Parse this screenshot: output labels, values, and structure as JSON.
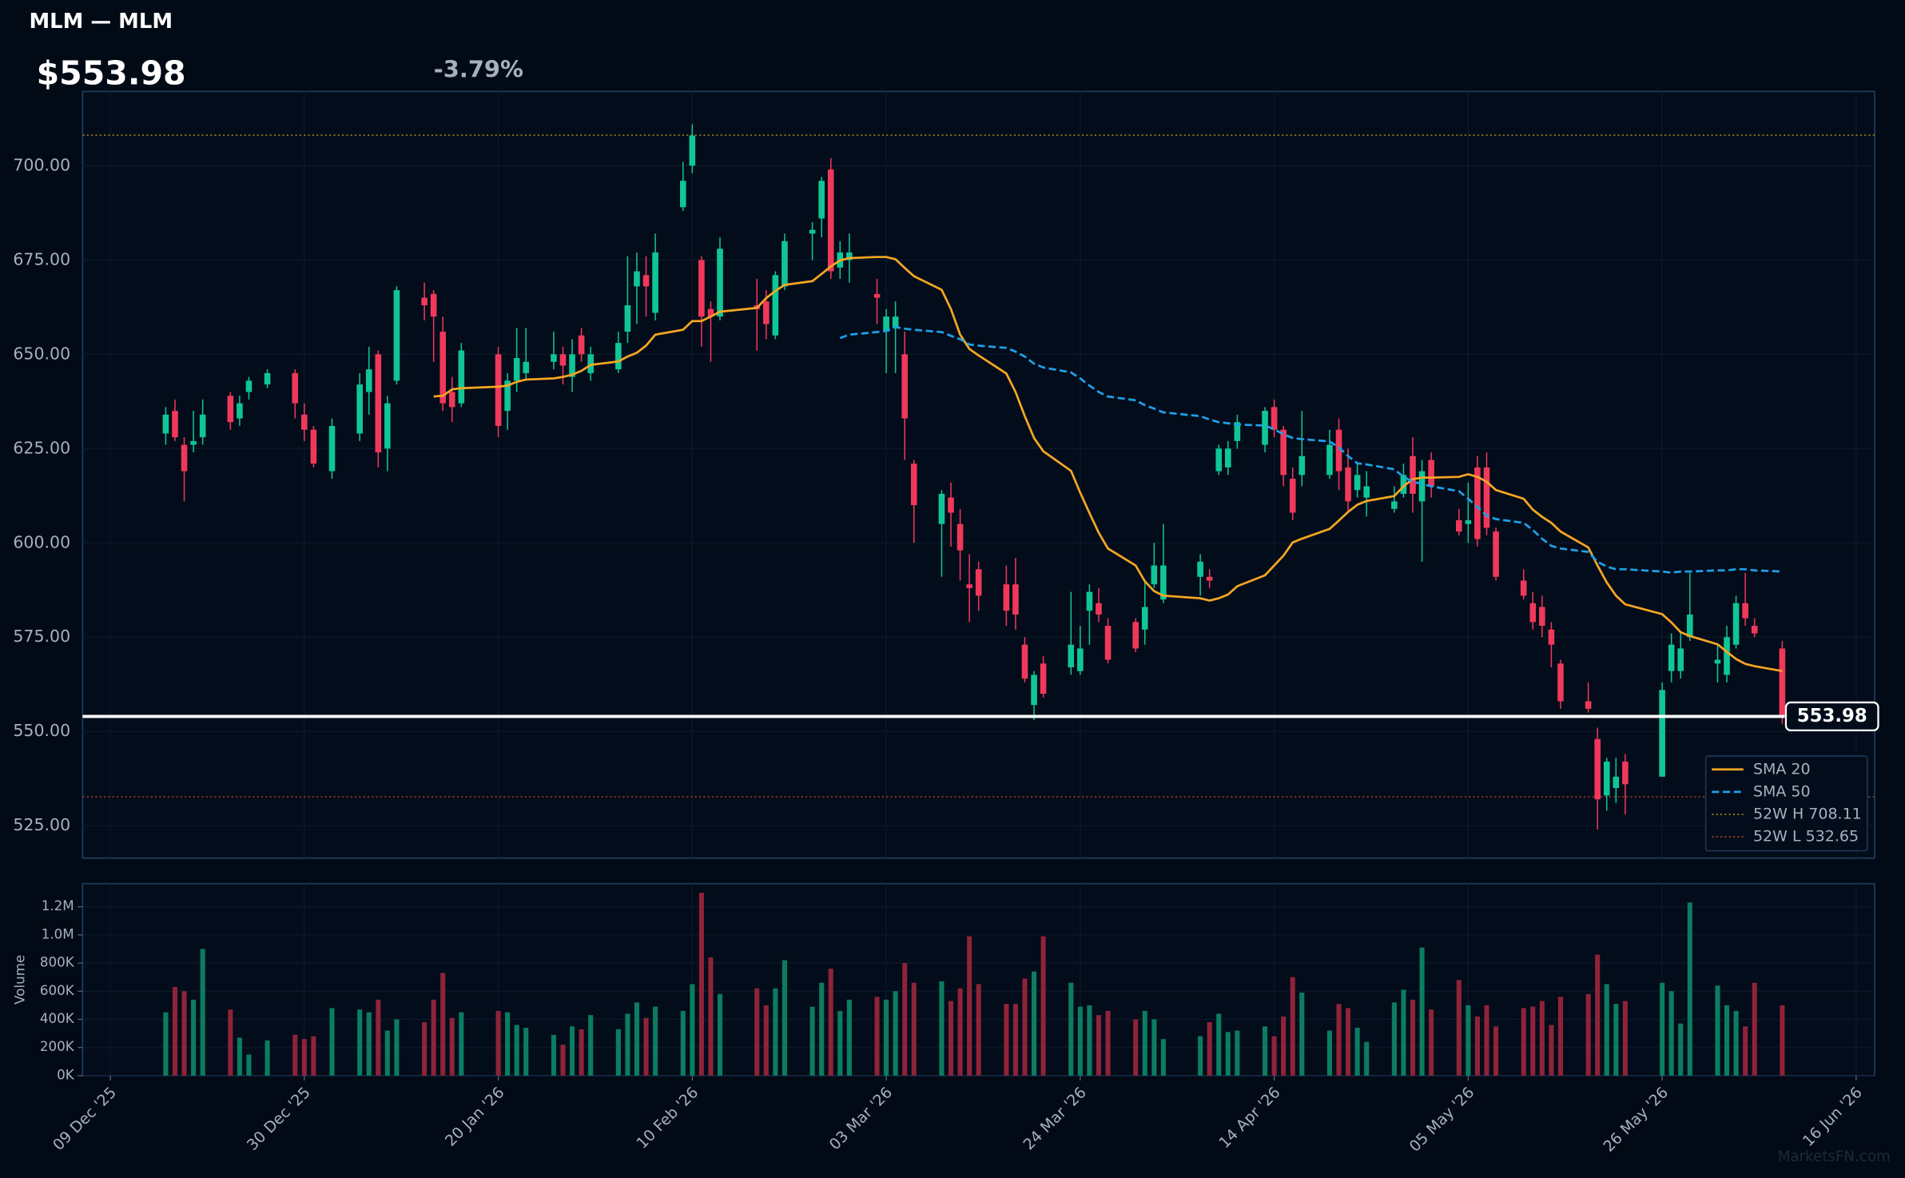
{
  "chart_data": {
    "type": "candlestick",
    "title": "MLM — MLM",
    "price": "$553.98",
    "change": "-3.79%",
    "change_color": "#f0385a",
    "up_color": "#10c596",
    "down_color": "#f0385a",
    "x": [
      "2025-12-15",
      "2025-12-16",
      "2025-12-17",
      "2025-12-18",
      "2025-12-19",
      "2025-12-22",
      "2025-12-23",
      "2025-12-24",
      "2025-12-26",
      "2025-12-29",
      "2025-12-30",
      "2025-12-31",
      "2026-01-02",
      "2026-01-05",
      "2026-01-06",
      "2026-01-07",
      "2026-01-08",
      "2026-01-09",
      "2026-01-12",
      "2026-01-13",
      "2026-01-14",
      "2026-01-15",
      "2026-01-16",
      "2026-01-20",
      "2026-01-21",
      "2026-01-22",
      "2026-01-23",
      "2026-01-26",
      "2026-01-27",
      "2026-01-28",
      "2026-01-29",
      "2026-01-30",
      "2026-02-02",
      "2026-02-03",
      "2026-02-04",
      "2026-02-05",
      "2026-02-06",
      "2026-02-09",
      "2026-02-10",
      "2026-02-11",
      "2026-02-12",
      "2026-02-13",
      "2026-02-17",
      "2026-02-18",
      "2026-02-19",
      "2026-02-20",
      "2026-02-23",
      "2026-02-24",
      "2026-02-25",
      "2026-02-26",
      "2026-02-27",
      "2026-03-02",
      "2026-03-03",
      "2026-03-04",
      "2026-03-05",
      "2026-03-06",
      "2026-03-09",
      "2026-03-10",
      "2026-03-11",
      "2026-03-12",
      "2026-03-13",
      "2026-03-16",
      "2026-03-17",
      "2026-03-18",
      "2026-03-19",
      "2026-03-20",
      "2026-03-23",
      "2026-03-24",
      "2026-03-25",
      "2026-03-26",
      "2026-03-27",
      "2026-03-30",
      "2026-03-31",
      "2026-04-01",
      "2026-04-02",
      "2026-04-06",
      "2026-04-07",
      "2026-04-08",
      "2026-04-09",
      "2026-04-10",
      "2026-04-13",
      "2026-04-14",
      "2026-04-15",
      "2026-04-16",
      "2026-04-17",
      "2026-04-20",
      "2026-04-21",
      "2026-04-22",
      "2026-04-23",
      "2026-04-24",
      "2026-04-27",
      "2026-04-28",
      "2026-04-29",
      "2026-04-30",
      "2026-05-01",
      "2026-05-04",
      "2026-05-05",
      "2026-05-06",
      "2026-05-07",
      "2026-05-08",
      "2026-05-11",
      "2026-05-12",
      "2026-05-13",
      "2026-05-14",
      "2026-05-15",
      "2026-05-18",
      "2026-05-19",
      "2026-05-20",
      "2026-05-21",
      "2026-05-22",
      "2026-05-26",
      "2026-05-27",
      "2026-05-28",
      "2026-05-29",
      "2026-06-01",
      "2026-06-02",
      "2026-06-03",
      "2026-06-04",
      "2026-06-05",
      "2026-06-08"
    ],
    "open": [
      629,
      635,
      626,
      626,
      628,
      639,
      633,
      640,
      642,
      645,
      634,
      630,
      619,
      629,
      640,
      650,
      625,
      643,
      665,
      666,
      656,
      640,
      637,
      650,
      635,
      643,
      645,
      648,
      650,
      644,
      655,
      645,
      646,
      656,
      668,
      671,
      661,
      689,
      700,
      675,
      662,
      660,
      663,
      664,
      655,
      668,
      682,
      686,
      699,
      673,
      675,
      666,
      656,
      657,
      650,
      621,
      605,
      612,
      605,
      589,
      593,
      589,
      589,
      573,
      557,
      568,
      567,
      566,
      582,
      584,
      578,
      579,
      577,
      589,
      585,
      591,
      591,
      619,
      620,
      627,
      626,
      636,
      630,
      617,
      618,
      618,
      630,
      620,
      614,
      612,
      609,
      613,
      623,
      611,
      622,
      606,
      605,
      620,
      620,
      603,
      590,
      584,
      583,
      577,
      568,
      558,
      548,
      533,
      535,
      542,
      538,
      566,
      566,
      575,
      568,
      565,
      573,
      584,
      578,
      572
    ],
    "high": [
      636,
      638,
      628,
      635,
      638,
      640,
      639,
      644,
      646,
      646,
      637,
      631,
      633,
      645,
      652,
      651,
      639,
      668,
      669,
      667,
      660,
      644,
      653,
      652,
      645,
      657,
      657,
      656,
      652,
      654,
      657,
      652,
      656,
      676,
      677,
      676,
      682,
      701,
      711,
      676,
      664,
      681,
      670,
      667,
      672,
      682,
      685,
      697,
      702,
      680,
      682,
      670,
      662,
      664,
      656,
      622,
      614,
      616,
      609,
      597,
      595,
      594,
      596,
      575,
      566,
      570,
      587,
      578,
      589,
      588,
      580,
      580,
      590,
      600,
      605,
      597,
      593,
      626,
      627,
      634,
      636,
      638,
      631,
      620,
      635,
      630,
      633,
      625,
      621,
      619,
      615,
      621,
      628,
      622,
      624,
      609,
      616,
      623,
      624,
      604,
      593,
      587,
      586,
      579,
      569,
      563,
      551,
      543,
      543,
      544,
      563,
      576,
      576,
      592,
      573,
      578,
      586,
      592,
      580,
      574
    ],
    "low": [
      626,
      627,
      611,
      624,
      626,
      630,
      631,
      638,
      641,
      633,
      627,
      620,
      617,
      627,
      634,
      620,
      619,
      642,
      659,
      648,
      635,
      632,
      636,
      628,
      630,
      640,
      643,
      646,
      642,
      640,
      648,
      643,
      645,
      653,
      658,
      660,
      659,
      688,
      698,
      652,
      648,
      659,
      651,
      654,
      654,
      667,
      675,
      681,
      670,
      670,
      669,
      658,
      645,
      645,
      622,
      600,
      591,
      599,
      590,
      579,
      582,
      578,
      577,
      563,
      553,
      559,
      565,
      565,
      573,
      579,
      568,
      571,
      573,
      588,
      584,
      586,
      588,
      618,
      618,
      625,
      624,
      628,
      615,
      606,
      615,
      617,
      614,
      608,
      612,
      607,
      608,
      612,
      608,
      595,
      612,
      602,
      600,
      599,
      602,
      590,
      585,
      577,
      575,
      567,
      556,
      555,
      524,
      529,
      531,
      528,
      538,
      563,
      564,
      574,
      563,
      563,
      572,
      578,
      575,
      552
    ],
    "close": [
      634,
      628,
      619,
      627,
      634,
      632,
      637,
      643,
      645,
      637,
      630,
      621,
      631,
      642,
      646,
      624,
      637,
      667,
      663,
      660,
      637,
      636,
      651,
      631,
      643,
      649,
      648,
      650,
      647,
      650,
      650,
      650,
      653,
      663,
      672,
      668,
      677,
      696,
      708,
      660,
      660,
      678,
      662,
      658,
      671,
      680,
      683,
      696,
      672,
      677,
      677,
      665,
      660,
      660,
      633,
      610,
      613,
      608,
      598,
      588,
      586,
      582,
      581,
      564,
      565,
      560,
      573,
      572,
      587,
      581,
      569,
      572,
      583,
      594,
      594,
      595,
      590,
      625,
      625,
      632,
      635,
      630,
      618,
      608,
      623,
      626,
      619,
      611,
      618,
      615,
      611,
      618,
      613,
      619,
      615,
      603,
      606,
      601,
      604,
      591,
      586,
      579,
      578,
      573,
      558,
      556,
      532,
      542,
      538,
      536,
      561,
      573,
      572,
      581,
      569,
      575,
      584,
      580,
      576,
      553.98
    ],
    "series": [
      {
        "name": "SMA 20",
        "color": "#f5a623",
        "dash": "none",
        "values": [
          null,
          null,
          null,
          null,
          null,
          null,
          null,
          null,
          null,
          null,
          null,
          null,
          null,
          null,
          null,
          null,
          null,
          null,
          null,
          638.8,
          639,
          640.7,
          641,
          641.4,
          641.7,
          642.7,
          643.3,
          643.6,
          644,
          644.6,
          645.6,
          647.2,
          648.1,
          649.4,
          650.4,
          652.3,
          655.2,
          656.5,
          658.8,
          658.8,
          660,
          661.3,
          662.3,
          664.9,
          666.8,
          668.4,
          669.4,
          671.3,
          673.3,
          674.9,
          675.5,
          675.8,
          675.8,
          675.2,
          672.9,
          670.7,
          667.1,
          662,
          655.2,
          651.4,
          649.7,
          644.9,
          640,
          633.6,
          627.8,
          624.3,
          619.1,
          613.3,
          607.9,
          602.7,
          598.5,
          594,
          589.8,
          587.2,
          586,
          585.3,
          584.7,
          585.3,
          586.3,
          588.5,
          591.4,
          594,
          596.6,
          600.1,
          601.1,
          603.7,
          605.9,
          608.2,
          610.1,
          611.1,
          612.4,
          615,
          616.9,
          617.3,
          617.3,
          617.5,
          618.2,
          617.5,
          616.2,
          614,
          611.7,
          608.8,
          606.9,
          605.3,
          603,
          598.8,
          594,
          589.5,
          586,
          583.7,
          581.1,
          578.9,
          576.3,
          575.3,
          573.1,
          571.1,
          569.2,
          567.9,
          567.3,
          566
        ]
      },
      {
        "name": "SMA 50",
        "color": "#1fa0e8",
        "dash": "6 3",
        "values": [
          null,
          null,
          null,
          null,
          null,
          null,
          null,
          null,
          null,
          null,
          null,
          null,
          null,
          null,
          null,
          null,
          null,
          null,
          null,
          null,
          null,
          null,
          null,
          null,
          null,
          null,
          null,
          null,
          null,
          null,
          null,
          null,
          null,
          null,
          null,
          null,
          null,
          null,
          null,
          null,
          null,
          null,
          null,
          null,
          null,
          null,
          null,
          null,
          null,
          654.3,
          655.2,
          655.9,
          656.2,
          657.2,
          656.8,
          656.5,
          655.9,
          654.9,
          654,
          652.6,
          652.3,
          651.7,
          650.7,
          649.4,
          647.5,
          646.5,
          645.2,
          643.6,
          641.7,
          640,
          638.8,
          637.8,
          636.5,
          635.6,
          634.6,
          633.6,
          632.7,
          632,
          631.7,
          631.4,
          631.1,
          630.1,
          628.8,
          627.8,
          627.5,
          626.9,
          625.3,
          623,
          621.1,
          620.8,
          619.5,
          617.5,
          616.2,
          615.6,
          615,
          613.7,
          611.7,
          609.5,
          607.2,
          606.3,
          605.3,
          603.4,
          601.1,
          599.2,
          598.5,
          597.6,
          595,
          593.7,
          593,
          593,
          592.4,
          592.1,
          592.4,
          592.4,
          592.7,
          592.7,
          593,
          593,
          592.7,
          592.4
        ]
      }
    ],
    "levels": [
      {
        "name": "52W H 708.11",
        "value": 708.11,
        "color": "#b08a1c"
      },
      {
        "name": "52W L 532.65",
        "value": 532.65,
        "color": "#a8452c"
      }
    ],
    "last_price": {
      "value": 553.98,
      "label": "553.98"
    },
    "xlim": [
      "2025-12-06",
      "2026-06-18"
    ],
    "xticks": [
      {
        "value": "2025-12-09",
        "label": "09 Dec '25"
      },
      {
        "value": "2025-12-30",
        "label": "30 Dec '25"
      },
      {
        "value": "2026-01-20",
        "label": "20 Jan '26"
      },
      {
        "value": "2026-02-10",
        "label": "10 Feb '26"
      },
      {
        "value": "2026-03-03",
        "label": "03 Mar '26"
      },
      {
        "value": "2026-03-24",
        "label": "24 Mar '26"
      },
      {
        "value": "2026-04-14",
        "label": "14 Apr '26"
      },
      {
        "value": "2026-05-05",
        "label": "05 May '26"
      },
      {
        "value": "2026-05-26",
        "label": "26 May '26"
      },
      {
        "value": "2026-06-16",
        "label": "16 Jun '26"
      }
    ],
    "ylim": [
      516.4,
      719.7
    ],
    "yticks": [
      {
        "value": 525,
        "label": "525.00"
      },
      {
        "value": 550,
        "label": "550.00"
      },
      {
        "value": 575,
        "label": "575.00"
      },
      {
        "value": 600,
        "label": "600.00"
      },
      {
        "value": 625,
        "label": "625.00"
      },
      {
        "value": 650,
        "label": "650.00"
      },
      {
        "value": 675,
        "label": "675.00"
      },
      {
        "value": 700,
        "label": "700.00"
      }
    ],
    "grid": true,
    "legend": "lower right",
    "volume": {
      "label": "Volume",
      "up_color": "#0b7d60",
      "down_color": "#8e2339",
      "values": [
        450000,
        630000,
        600000,
        540000,
        900000,
        470000,
        270000,
        150000,
        250000,
        290000,
        260000,
        280000,
        480000,
        470000,
        450000,
        540000,
        320000,
        400000,
        380000,
        540000,
        730000,
        410000,
        450000,
        460000,
        450000,
        360000,
        340000,
        290000,
        220000,
        350000,
        330000,
        430000,
        330000,
        440000,
        520000,
        410000,
        490000,
        460000,
        650000,
        1300000,
        840000,
        580000,
        620000,
        500000,
        620000,
        820000,
        490000,
        660000,
        760000,
        460000,
        540000,
        560000,
        540000,
        600000,
        800000,
        660000,
        670000,
        530000,
        620000,
        990000,
        650000,
        510000,
        510000,
        690000,
        740000,
        990000,
        660000,
        490000,
        500000,
        430000,
        460000,
        400000,
        460000,
        400000,
        260000,
        280000,
        380000,
        440000,
        310000,
        320000,
        350000,
        280000,
        420000,
        700000,
        590000,
        320000,
        510000,
        480000,
        340000,
        240000,
        520000,
        610000,
        540000,
        910000,
        470000,
        680000,
        500000,
        420000,
        500000,
        350000,
        480000,
        490000,
        530000,
        360000,
        560000,
        580000,
        860000,
        650000,
        510000,
        530000,
        660000,
        600000,
        370000,
        1230000,
        640000,
        500000,
        460000,
        350000,
        660000,
        500000
      ],
      "ylim": [
        0,
        1364000
      ],
      "yticks": [
        {
          "value": 0,
          "label": "0K"
        },
        {
          "value": 200000,
          "label": "200K"
        },
        {
          "value": 400000,
          "label": "400K"
        },
        {
          "value": 600000,
          "label": "600K"
        },
        {
          "value": 800000,
          "label": "800K"
        },
        {
          "value": 1000000,
          "label": "1.0M"
        },
        {
          "value": 1200000,
          "label": "1.2M"
        }
      ]
    },
    "watermark": "MarketsFN.com"
  }
}
